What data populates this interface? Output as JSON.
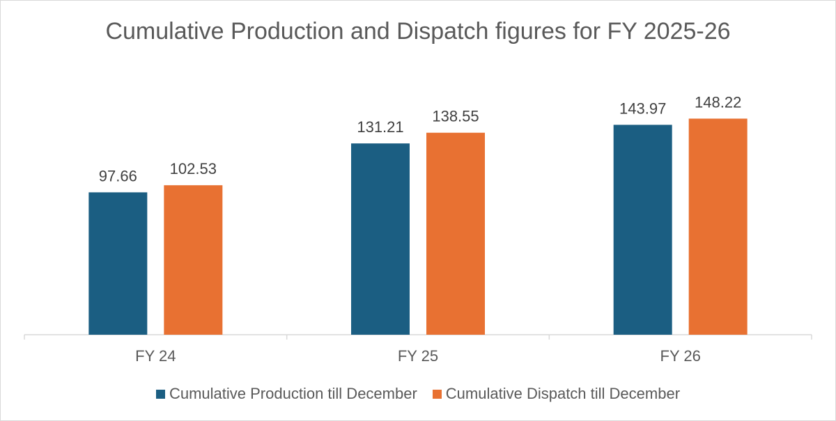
{
  "chart_data": {
    "type": "bar",
    "title": "Cumulative Production and Dispatch figures for FY 2025-26",
    "categories": [
      "FY 24",
      "FY 25",
      "FY 26"
    ],
    "series": [
      {
        "name": "Cumulative Production till December",
        "values": [
          97.66,
          131.21,
          143.97
        ],
        "color": "#1b5e82"
      },
      {
        "name": "Cumulative Dispatch till December",
        "values": [
          102.53,
          138.55,
          148.22
        ],
        "color": "#e87132"
      }
    ],
    "data_labels": [
      [
        "97.66",
        "131.21",
        "143.97"
      ],
      [
        "102.53",
        "138.55",
        "148.22"
      ]
    ],
    "xlabel": "",
    "ylabel": "",
    "ylim": [
      0,
      160
    ],
    "grid": false,
    "legend_position": "bottom"
  }
}
